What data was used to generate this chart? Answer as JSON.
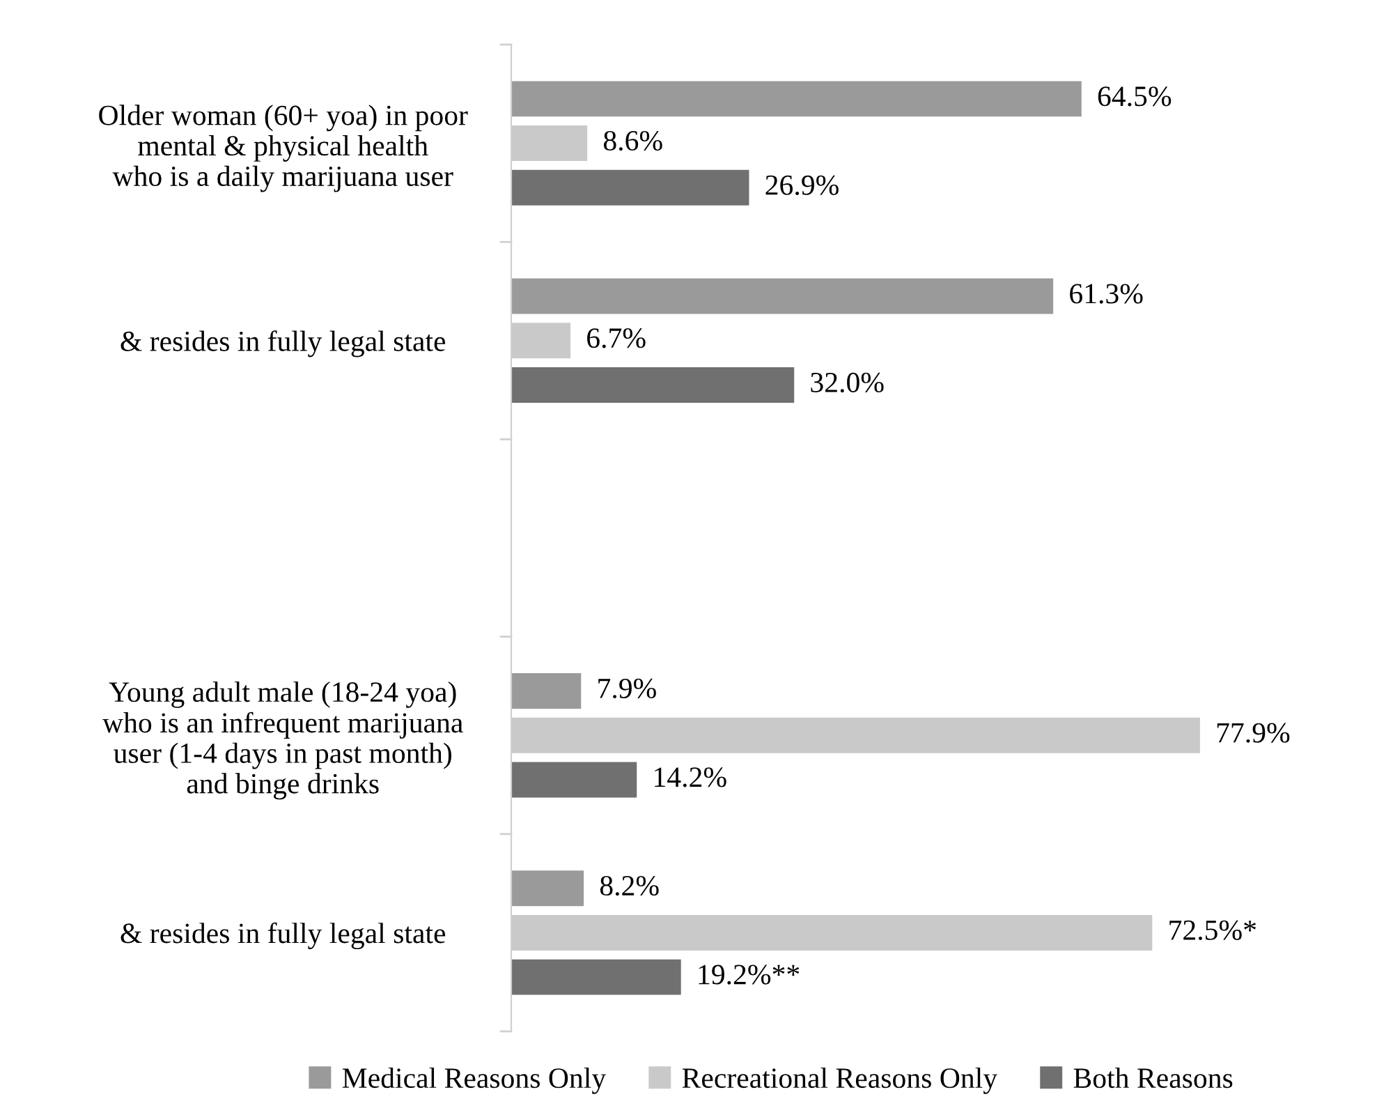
{
  "chart_data": {
    "type": "bar",
    "orientation": "horizontal",
    "categories": [
      "Older woman (60+ yoa) in poor\nmental & physical health\nwho is a daily marijuana user",
      "& resides in fully legal state",
      null,
      "Young adult male (18-24 yoa)\nwho is an infrequent marijuana\nuser (1-4 days in past month)\nand binge drinks",
      "& resides in fully legal state"
    ],
    "series": [
      {
        "name": "Medical Reasons Only",
        "color": "#9a9a9a",
        "values": [
          64.5,
          61.3,
          null,
          7.9,
          8.2
        ],
        "value_labels": [
          "64.5%",
          "61.3%",
          null,
          "7.9%",
          "8.2%"
        ]
      },
      {
        "name": "Recreational Reasons Only",
        "color": "#c9c9c9",
        "values": [
          8.6,
          6.7,
          null,
          77.9,
          72.5
        ],
        "value_labels": [
          "8.6%",
          "6.7%",
          null,
          "77.9%",
          "72.5%*"
        ]
      },
      {
        "name": "Both Reasons",
        "color": "#707070",
        "values": [
          26.9,
          32.0,
          null,
          14.2,
          19.2
        ],
        "value_labels": [
          "26.9%",
          "32.0%",
          null,
          "14.2%",
          "19.2%**"
        ]
      }
    ],
    "tick_labels": "y",
    "grid": false,
    "legend": "bottom"
  }
}
